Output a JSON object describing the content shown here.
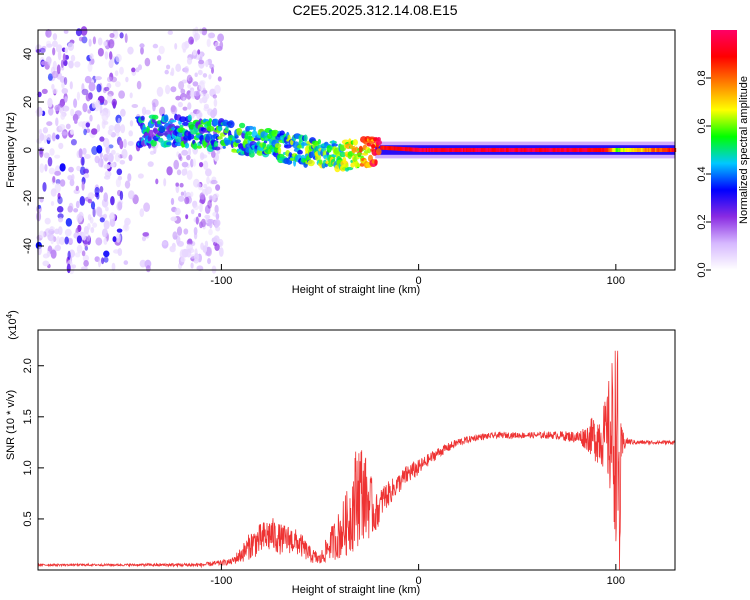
{
  "title": "C2E5.2025.312.14.08.E15",
  "chart_data": [
    {
      "type": "heatmap",
      "title": "C2E5.2025.312.14.08.E15",
      "xlabel": "Height of straight line (km)",
      "ylabel": "Frequency (Hz)",
      "xlim": [
        -193,
        130
      ],
      "ylim": [
        -50,
        50
      ],
      "xticks": [
        -100,
        0,
        100
      ],
      "yticks": [
        -40,
        -20,
        0,
        20,
        40
      ],
      "colorbar": {
        "label": "Normalized spectral amplitude",
        "range": [
          0.0,
          1.0
        ],
        "ticks": [
          0.0,
          0.2,
          0.4,
          0.6,
          0.8
        ],
        "colormap": [
          "#ffffff",
          "#d6b8ff",
          "#8a2be2",
          "#0000ff",
          "#00c8ff",
          "#00ff00",
          "#ffff00",
          "#ff8000",
          "#ff0000",
          "#ff0066"
        ]
      },
      "ridge": {
        "x": [
          -142,
          -120,
          -100,
          -80,
          -60,
          -40,
          -22,
          -20,
          0,
          20,
          40,
          60,
          80,
          95,
          100,
          130
        ],
        "freq": [
          8,
          8,
          6,
          3,
          0,
          -3,
          0,
          1,
          0,
          0,
          0,
          0,
          0,
          0,
          0,
          0
        ],
        "amplitude": [
          0.35,
          0.4,
          0.45,
          0.45,
          0.5,
          0.55,
          0.85,
          0.9,
          0.95,
          0.95,
          0.95,
          0.95,
          0.95,
          0.9,
          0.6,
          0.9
        ]
      },
      "noise_region_x": [
        -193,
        -100
      ]
    },
    {
      "type": "line",
      "title": "",
      "xlabel": "Height of straight line (km)",
      "ylabel": "SNR (10 * v/v)",
      "scale_label": "(x10",
      "scale_exponent": "4",
      "scale_suffix": ")",
      "xlim": [
        -193,
        130
      ],
      "ylim": [
        0,
        2.35
      ],
      "xticks": [
        -100,
        0,
        100
      ],
      "yticks": [
        0.5,
        1.0,
        1.5,
        2.0
      ],
      "color": "#ee3333",
      "series": [
        {
          "name": "SNR",
          "x": [
            -193,
            -150,
            -110,
            -95,
            -90,
            -85,
            -80,
            -75,
            -70,
            -65,
            -60,
            -55,
            -50,
            -45,
            -40,
            -35,
            -32,
            -30,
            -28,
            -25,
            -22,
            -20,
            -18,
            -15,
            -10,
            -5,
            0,
            5,
            10,
            20,
            30,
            40,
            50,
            60,
            70,
            80,
            85,
            90,
            95,
            98,
            100,
            101,
            102,
            103,
            105,
            110,
            120,
            130
          ],
          "y": [
            0.05,
            0.05,
            0.05,
            0.08,
            0.15,
            0.25,
            0.3,
            0.35,
            0.3,
            0.3,
            0.25,
            0.15,
            0.1,
            0.25,
            0.35,
            0.5,
            0.7,
            0.8,
            0.75,
            0.65,
            0.55,
            0.6,
            0.7,
            0.75,
            0.85,
            0.95,
            1.0,
            1.08,
            1.15,
            1.25,
            1.3,
            1.32,
            1.32,
            1.32,
            1.32,
            1.3,
            1.3,
            1.3,
            1.32,
            1.3,
            1.3,
            1.0,
            0.6,
            1.2,
            1.26,
            1.25,
            1.25,
            1.25
          ],
          "noise": [
            0.01,
            0.01,
            0.02,
            0.03,
            0.08,
            0.14,
            0.16,
            0.18,
            0.15,
            0.14,
            0.12,
            0.08,
            0.06,
            0.15,
            0.25,
            0.35,
            0.5,
            0.55,
            0.45,
            0.35,
            0.2,
            0.15,
            0.15,
            0.12,
            0.1,
            0.1,
            0.08,
            0.06,
            0.05,
            0.04,
            0.03,
            0.03,
            0.03,
            0.03,
            0.04,
            0.06,
            0.12,
            0.25,
            0.35,
            0.8,
            1.0,
            1.2,
            0.9,
            0.2,
            0.04,
            0.02,
            0.02,
            0.02
          ]
        }
      ]
    }
  ]
}
